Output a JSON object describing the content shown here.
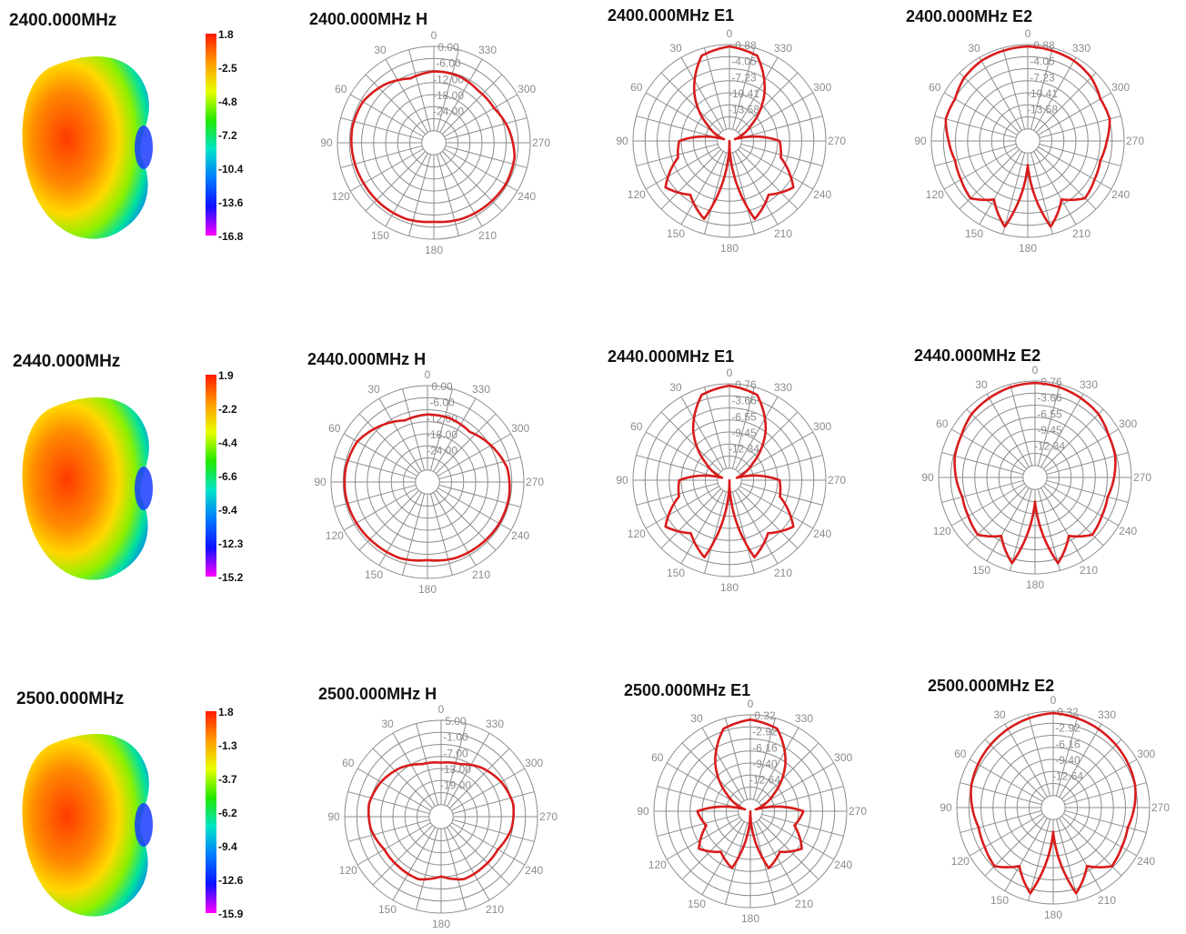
{
  "colors": {
    "trace": "#d81c1c",
    "grid": "#8c8c8c",
    "axis_text": "#8c8c8c",
    "title": "#111111",
    "colorbar": [
      "#ff1a00",
      "#ff9a00",
      "#e8ff00",
      "#24e800",
      "#00e4c8",
      "#007bff",
      "#1010ff",
      "#ff00ff"
    ]
  },
  "angle_labels": [
    "0",
    "30",
    "60",
    "90",
    "120",
    "150",
    "180",
    "210",
    "240",
    "270",
    "300",
    "330"
  ],
  "rows": [
    {
      "frequency_label": "2400.000MHz",
      "colorbar": {
        "ticks": [
          "1.8",
          "-2.5",
          "-4.8",
          "-7.2",
          "-10.4",
          "-13.6",
          "-16.8"
        ]
      },
      "charts": [
        {
          "title": "2400.000MHz  H",
          "type": "polar",
          "radial_labels": [
            "0.00",
            "-6.00",
            "-12.00",
            "-18.00",
            "-24.00"
          ],
          "samples": [
            0.74,
            0.71,
            0.79,
            0.85,
            0.86,
            0.85,
            0.84,
            0.84,
            0.84,
            0.82,
            0.84,
            0.85,
            0.86,
            0.85,
            0.79,
            0.72,
            0.71,
            0.74
          ]
        },
        {
          "title": "2400.000MHz  E1",
          "type": "polar",
          "radial_labels": [
            "-0.88",
            "-4.05",
            "-7.23",
            "-10.41",
            "-13.58"
          ],
          "samples": [
            0.98,
            0.93,
            0.62,
            0.28,
            0.06,
            0.52,
            0.56,
            0.82,
            0.69,
            0.85,
            0.0,
            0.85,
            0.69,
            0.82,
            0.56,
            0.52,
            0.06,
            0.28,
            0.62,
            0.93
          ]
        },
        {
          "title": "2400.000MHz  E2",
          "type": "polar",
          "radial_labels": [
            "-0.88",
            "-4.05",
            "-7.23",
            "-10.41",
            "-13.58"
          ],
          "samples": [
            0.98,
            0.97,
            0.96,
            0.93,
            0.87,
            0.88,
            0.82,
            0.78,
            0.8,
            0.84,
            0.7,
            0.92,
            0.25,
            0.92,
            0.7,
            0.84,
            0.8,
            0.78,
            0.82,
            0.88,
            0.87,
            0.93,
            0.96,
            0.97
          ]
        }
      ]
    },
    {
      "frequency_label": "2440.000MHz",
      "colorbar": {
        "ticks": [
          "1.9",
          "-2.2",
          "-4.4",
          "-6.6",
          "-9.4",
          "-12.3",
          "-15.2"
        ]
      },
      "charts": [
        {
          "title": "2440.000MHz  H",
          "type": "polar",
          "radial_labels": [
            "0.00",
            "-6.00",
            "-12.00",
            "-18.00",
            "-24.00"
          ],
          "samples": [
            0.7,
            0.68,
            0.76,
            0.84,
            0.86,
            0.86,
            0.85,
            0.84,
            0.84,
            0.81,
            0.84,
            0.85,
            0.86,
            0.86,
            0.84,
            0.76,
            0.68,
            0.7
          ]
        },
        {
          "title": "2440.000MHz  E1",
          "type": "polar",
          "radial_labels": [
            "-0.76",
            "-3.66",
            "-6.55",
            "-9.45",
            "-12.34"
          ],
          "samples": [
            0.98,
            0.93,
            0.64,
            0.3,
            0.08,
            0.52,
            0.55,
            0.82,
            0.68,
            0.84,
            0.0,
            0.84,
            0.68,
            0.82,
            0.55,
            0.52,
            0.08,
            0.3,
            0.64,
            0.93
          ]
        },
        {
          "title": "2440.000MHz  E2",
          "type": "polar",
          "radial_labels": [
            "-0.76",
            "-3.66",
            "-6.55",
            "-9.45",
            "-12.34"
          ],
          "samples": [
            0.98,
            0.97,
            0.95,
            0.93,
            0.88,
            0.86,
            0.82,
            0.78,
            0.8,
            0.84,
            0.7,
            0.92,
            0.25,
            0.92,
            0.7,
            0.84,
            0.8,
            0.78,
            0.82,
            0.86,
            0.88,
            0.93,
            0.95,
            0.97
          ]
        }
      ]
    },
    {
      "frequency_label": "2500.000MHz",
      "colorbar": {
        "ticks": [
          "1.8",
          "-1.3",
          "-3.7",
          "-6.2",
          "-9.4",
          "-12.6",
          "-15.9"
        ]
      },
      "charts": [
        {
          "title": "2500.000MHz  H",
          "type": "polar",
          "radial_labels": [
            "5.00",
            "-1.00",
            "-7.00",
            "-13.00",
            "-19.00"
          ],
          "samples": [
            0.56,
            0.58,
            0.66,
            0.72,
            0.76,
            0.74,
            0.68,
            0.68,
            0.69,
            0.62,
            0.69,
            0.68,
            0.68,
            0.74,
            0.76,
            0.72,
            0.66,
            0.58
          ]
        },
        {
          "title": "2500.000MHz  E1",
          "type": "polar",
          "radial_labels": [
            "0.32",
            "-2.92",
            "-6.16",
            "-9.40",
            "-12.64"
          ],
          "samples": [
            0.95,
            0.9,
            0.62,
            0.3,
            0.06,
            0.55,
            0.48,
            0.66,
            0.52,
            0.62,
            0.0,
            0.62,
            0.52,
            0.66,
            0.48,
            0.55,
            0.06,
            0.3,
            0.62,
            0.9
          ]
        },
        {
          "title": "2500.000MHz  E2",
          "type": "polar",
          "radial_labels": [
            "0.32",
            "-2.92",
            "-6.16",
            "-9.40",
            "-12.64"
          ],
          "samples": [
            0.98,
            0.96,
            0.94,
            0.92,
            0.9,
            0.88,
            0.84,
            0.8,
            0.82,
            0.86,
            0.7,
            0.92,
            0.25,
            0.92,
            0.7,
            0.86,
            0.82,
            0.8,
            0.84,
            0.88,
            0.9,
            0.92,
            0.94,
            0.96
          ]
        }
      ]
    }
  ]
}
